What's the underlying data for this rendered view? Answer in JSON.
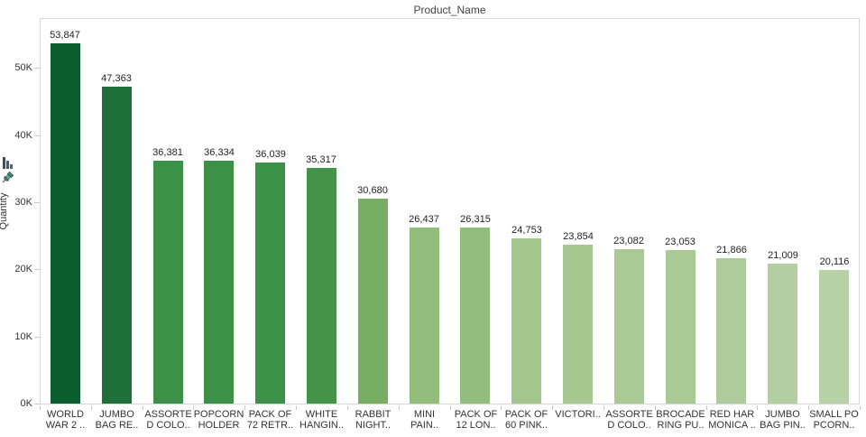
{
  "chart": {
    "title": "Product_Name",
    "y_axis_title": "Quantity",
    "axis_controls": {
      "sort_icon": "sort-descending-icon",
      "pin_icon": "pin-icon"
    }
  },
  "chart_data": {
    "type": "bar",
    "title": "Product_Name",
    "xlabel": "",
    "ylabel": "Quantity",
    "ylim": [
      0,
      57600
    ],
    "grid": false,
    "legend": "none",
    "sort_order": "descending by value",
    "y_ticks": [
      {
        "value": 0,
        "label": "0K"
      },
      {
        "value": 10000,
        "label": "10K"
      },
      {
        "value": 20000,
        "label": "20K"
      },
      {
        "value": 30000,
        "label": "30K"
      },
      {
        "value": 40000,
        "label": "40K"
      },
      {
        "value": 50000,
        "label": "50K"
      }
    ],
    "bars": [
      {
        "category_lines": [
          "WORLD",
          "WAR 2 .."
        ],
        "value": 53847,
        "label": "53,847",
        "color": "#0c5d2e",
        "textured": false
      },
      {
        "category_lines": [
          "JUMBO",
          "BAG RE.."
        ],
        "value": 47363,
        "label": "47,363",
        "color": "#1f6f39",
        "textured": false
      },
      {
        "category_lines": [
          "ASSORTE",
          "D COLO.."
        ],
        "value": 36381,
        "label": "36,381",
        "color": "#3c9047",
        "textured": false
      },
      {
        "category_lines": [
          "POPCORN",
          "HOLDER"
        ],
        "value": 36334,
        "label": "36,334",
        "color": "#3c9047",
        "textured": false
      },
      {
        "category_lines": [
          "PACK OF",
          "72 RETR.."
        ],
        "value": 36039,
        "label": "36,039",
        "color": "#3e9148",
        "textured": false
      },
      {
        "category_lines": [
          "WHITE",
          "HANGIN.."
        ],
        "value": 35317,
        "label": "35,317",
        "color": "#449349",
        "textured": false
      },
      {
        "category_lines": [
          "RABBIT",
          "NIGHT.."
        ],
        "value": 30680,
        "label": "30,680",
        "color": "#78ad64",
        "textured": false
      },
      {
        "category_lines": [
          "MINI",
          "PAIN.."
        ],
        "value": 26437,
        "label": "26,437",
        "color": "#92bd7d",
        "textured": false
      },
      {
        "category_lines": [
          "PACK OF",
          "12 LON.."
        ],
        "value": 26315,
        "label": "26,315",
        "color": "#93bd7e",
        "textured": false
      },
      {
        "category_lines": [
          "PACK OF",
          "60 PINK.."
        ],
        "value": 24753,
        "label": "24,753",
        "color": "#a3c68f",
        "textured": true
      },
      {
        "category_lines": [
          "VICTORI..",
          ""
        ],
        "value": 23854,
        "label": "23,854",
        "color": "#a6c891",
        "textured": true
      },
      {
        "category_lines": [
          "ASSORTE",
          "D COLO.."
        ],
        "value": 23082,
        "label": "23,082",
        "color": "#a9c995",
        "textured": false
      },
      {
        "category_lines": [
          "BROCADE",
          "RING PU.."
        ],
        "value": 23053,
        "label": "23,053",
        "color": "#a9ca95",
        "textured": false
      },
      {
        "category_lines": [
          "RED HAR",
          "MONICA .."
        ],
        "value": 21866,
        "label": "21,866",
        "color": "#aecc9b",
        "textured": true
      },
      {
        "category_lines": [
          "JUMBO",
          "BAG PIN.."
        ],
        "value": 21009,
        "label": "21,009",
        "color": "#b3cfa1",
        "textured": true
      },
      {
        "category_lines": [
          "SMALL PO",
          "PCORN.."
        ],
        "value": 20116,
        "label": "20,116",
        "color": "#b8d2a7",
        "textured": true
      }
    ],
    "colors": {
      "label_text": "#222222",
      "axis_text": "#333333",
      "plot_border": "#d7d7d7",
      "tick_mark": "#c9c9c9"
    }
  }
}
